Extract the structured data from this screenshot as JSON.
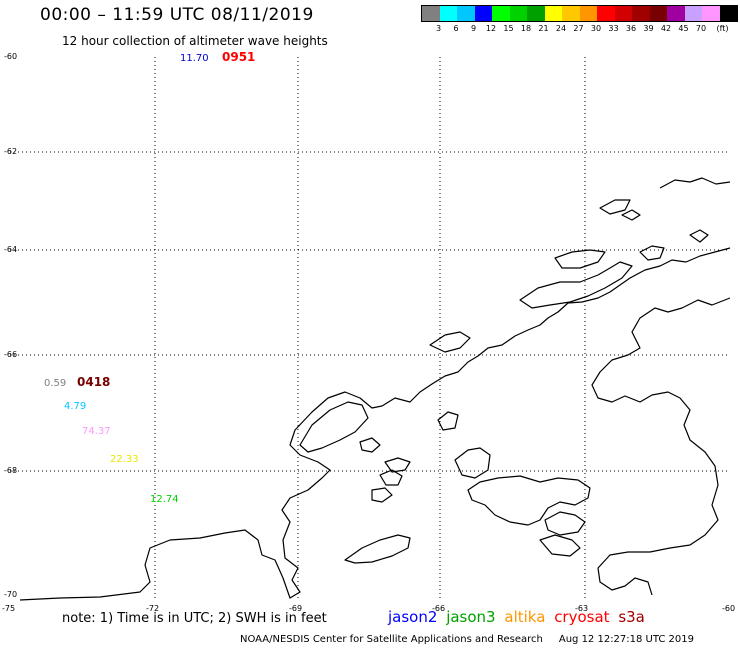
{
  "header": {
    "title": "00:00 – 11:59 UTC 08/11/2019",
    "subtitle": "12 hour collection of altimeter wave heights"
  },
  "legend": {
    "colors": [
      "#808080",
      "#00ffff",
      "#00c8ff",
      "#0000ff",
      "#00ff00",
      "#00d200",
      "#00a000",
      "#ffff00",
      "#ffc800",
      "#ff9600",
      "#ff0000",
      "#d20000",
      "#a00000",
      "#780000",
      "#a000a0",
      "#c8a0ff",
      "#ff96ff",
      "#000000"
    ],
    "labels": [
      "3",
      "6",
      "9",
      "12",
      "15",
      "18",
      "21",
      "24",
      "27",
      "30",
      "33",
      "36",
      "39",
      "42",
      "45",
      "70",
      "(ft)"
    ]
  },
  "axes": {
    "lat_labels": [
      "-60",
      "-62",
      "-64",
      "-66",
      "-68",
      "-70"
    ],
    "lon_labels": [
      "-75",
      "-72",
      "-69",
      "-66",
      "-63",
      "-60"
    ]
  },
  "observations": [
    {
      "value": "11.70",
      "color": "#0000cc"
    },
    {
      "value": "0951",
      "color": "#ff0000"
    },
    {
      "value": "0.59",
      "color": "#808080"
    },
    {
      "value": "0418",
      "color": "#780000"
    },
    {
      "value": "4.79",
      "color": "#00c8ff"
    },
    {
      "value": "74.37",
      "color": "#ff96ff"
    },
    {
      "value": "22.33",
      "color": "#ffff00"
    },
    {
      "value": "12.74",
      "color": "#00d200"
    }
  ],
  "footer": {
    "note": "note: 1) Time is in UTC; 2) SWH is in feet",
    "satellites": [
      {
        "name": "jason2",
        "color": "#0000ff"
      },
      {
        "name": "jason3",
        "color": "#00a000"
      },
      {
        "name": "altika",
        "color": "#ff9600"
      },
      {
        "name": "cryosat",
        "color": "#ff0000"
      },
      {
        "name": "s3a",
        "color": "#a00000"
      }
    ],
    "credit": "NOAA/NESDIS Center for Satellite Applications and Research",
    "timestamp": "Aug 12 12:27:18 UTC 2019"
  }
}
